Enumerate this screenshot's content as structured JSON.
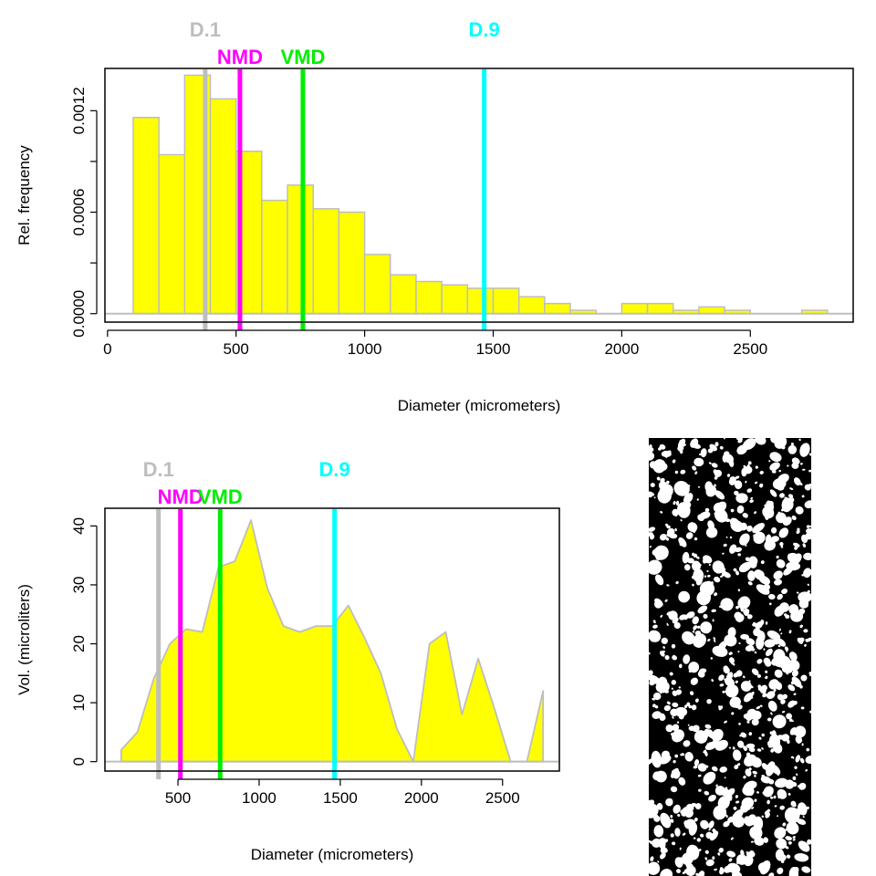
{
  "chart_data": [
    {
      "type": "bar",
      "xlabel": "Diameter (micrometers)",
      "ylabel": "Rel. frequency",
      "xlim": [
        -10,
        2900
      ],
      "ylim": [
        -5e-05,
        0.00145
      ],
      "x_ticks": [
        "0",
        "500",
        "1000",
        "1500",
        "2000",
        "2500"
      ],
      "y_ticks": [
        "0.0000",
        "0.0006",
        "0.0012"
      ],
      "bar_color": "#ffff00",
      "bar_border": "#bebebe",
      "bins": [
        {
          "x0": 100,
          "x1": 200,
          "value": 0.00116
        },
        {
          "x0": 200,
          "x1": 300,
          "value": 0.00094
        },
        {
          "x0": 300,
          "x1": 400,
          "value": 0.00141
        },
        {
          "x0": 400,
          "x1": 500,
          "value": 0.00127
        },
        {
          "x0": 500,
          "x1": 600,
          "value": 0.00096
        },
        {
          "x0": 600,
          "x1": 700,
          "value": 0.00067
        },
        {
          "x0": 700,
          "x1": 800,
          "value": 0.00076
        },
        {
          "x0": 800,
          "x1": 900,
          "value": 0.00062
        },
        {
          "x0": 900,
          "x1": 1000,
          "value": 0.0006
        },
        {
          "x0": 1000,
          "x1": 1100,
          "value": 0.00035
        },
        {
          "x0": 1100,
          "x1": 1200,
          "value": 0.00023
        },
        {
          "x0": 1200,
          "x1": 1300,
          "value": 0.00019
        },
        {
          "x0": 1300,
          "x1": 1400,
          "value": 0.00017
        },
        {
          "x0": 1400,
          "x1": 1500,
          "value": 0.00015
        },
        {
          "x0": 1500,
          "x1": 1600,
          "value": 0.00015
        },
        {
          "x0": 1600,
          "x1": 1700,
          "value": 0.0001
        },
        {
          "x0": 1700,
          "x1": 1800,
          "value": 6e-05
        },
        {
          "x0": 1800,
          "x1": 1900,
          "value": 2e-05
        },
        {
          "x0": 1900,
          "x1": 2000,
          "value": 0.0
        },
        {
          "x0": 2000,
          "x1": 2100,
          "value": 6e-05
        },
        {
          "x0": 2100,
          "x1": 2200,
          "value": 6e-05
        },
        {
          "x0": 2200,
          "x1": 2300,
          "value": 2e-05
        },
        {
          "x0": 2300,
          "x1": 2400,
          "value": 4e-05
        },
        {
          "x0": 2400,
          "x1": 2500,
          "value": 2e-05
        },
        {
          "x0": 2500,
          "x1": 2600,
          "value": 0.0
        },
        {
          "x0": 2600,
          "x1": 2700,
          "value": 0.0
        },
        {
          "x0": 2700,
          "x1": 2800,
          "value": 2e-05
        }
      ],
      "markers": [
        {
          "label": "D.1",
          "x": 380,
          "color": "#bebebe",
          "row": 1
        },
        {
          "label": "NMD",
          "x": 515,
          "color": "#ff00ff",
          "row": 2
        },
        {
          "label": "VMD",
          "x": 760,
          "color": "#00ee00",
          "row": 2
        },
        {
          "label": "D.9",
          "x": 1465,
          "color": "#00ffff",
          "row": 1
        }
      ]
    },
    {
      "type": "area",
      "xlabel": "Diameter (micrometers)",
      "ylabel": "Vol. (microliters)",
      "xlim": [
        50,
        2850
      ],
      "ylim": [
        -1.6,
        43
      ],
      "x_ticks": [
        "500",
        "1000",
        "1500",
        "2000",
        "2500"
      ],
      "y_ticks": [
        "0",
        "10",
        "20",
        "30",
        "40"
      ],
      "fill_color": "#ffff00",
      "line_color": "#bebebe",
      "x": [
        150,
        250,
        350,
        450,
        550,
        650,
        750,
        850,
        950,
        1050,
        1150,
        1250,
        1350,
        1450,
        1550,
        1650,
        1750,
        1850,
        1950,
        2050,
        2150,
        2250,
        2350,
        2450,
        2550,
        2650,
        2750
      ],
      "y": [
        2,
        5,
        14,
        20,
        22.5,
        22,
        33,
        34,
        41,
        29.5,
        23,
        22,
        23,
        23,
        26.5,
        21,
        15,
        5.5,
        0,
        20,
        22,
        8,
        17.5,
        9,
        0,
        0,
        12
      ],
      "markers": [
        {
          "label": "D.1",
          "x": 380,
          "color": "#bebebe",
          "row": 1
        },
        {
          "label": "NMD",
          "x": 515,
          "color": "#ff00ff",
          "row": 2
        },
        {
          "label": "VMD",
          "x": 760,
          "color": "#00ee00",
          "row": 2
        },
        {
          "label": "D.9",
          "x": 1465,
          "color": "#00ffff",
          "row": 1
        }
      ]
    }
  ]
}
